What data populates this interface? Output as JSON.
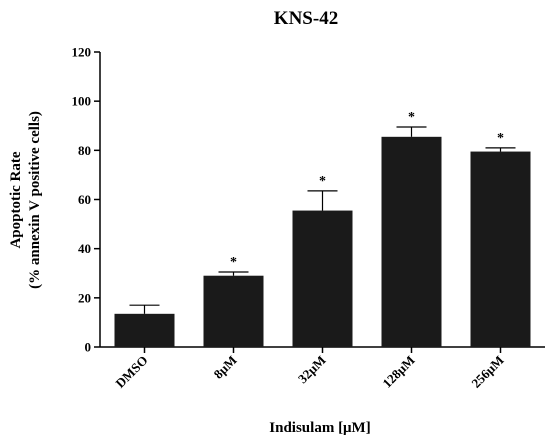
{
  "chart_data": {
    "type": "bar",
    "title": "KNS-42",
    "xlabel": "Indisulam [μM]",
    "ylabel_line1": "Apoptotic Rate",
    "ylabel_line2": "(% annexin V positive cells)",
    "categories": [
      "DMSO",
      "8μM",
      "32μM",
      "128μM",
      "256μM"
    ],
    "values": [
      13.5,
      29,
      55.5,
      85.5,
      79.5
    ],
    "errors": [
      3.5,
      1.5,
      8,
      4,
      1.5
    ],
    "significance": [
      "",
      "*",
      "*",
      "*",
      "*"
    ],
    "ylim": [
      0,
      120
    ],
    "yticks": [
      0,
      20,
      40,
      60,
      80,
      100,
      120
    ],
    "bar_color": "#1a1a1a",
    "grid": false,
    "legend": "none"
  }
}
